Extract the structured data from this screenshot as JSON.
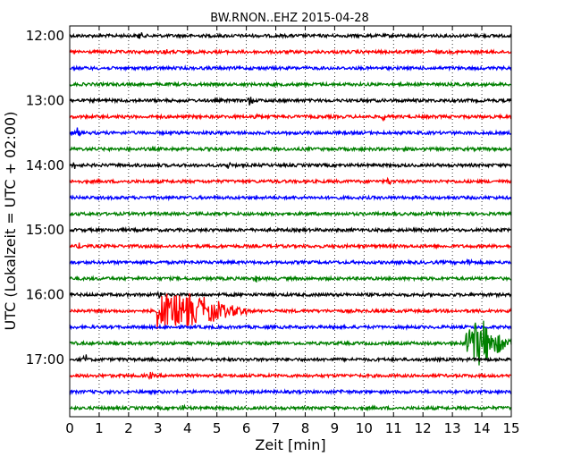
{
  "chart_data": {
    "type": "line",
    "title": "BW.RNON..EHZ 2015-04-28",
    "xlabel": "Zeit  [min]",
    "ylabel": "UTC (Lokalzeit = UTC + 02:00)",
    "xlim": [
      0,
      15
    ],
    "xticks": [
      "0",
      "1",
      "2",
      "3",
      "4",
      "5",
      "6",
      "7",
      "8",
      "9",
      "10",
      "11",
      "12",
      "13",
      "14",
      "15"
    ],
    "yticks": [
      "12:00",
      "13:00",
      "14:00",
      "15:00",
      "16:00",
      "17:00"
    ],
    "grid": "vertical-dotted",
    "trace_colors": [
      "#000000",
      "#ff0000",
      "#0000ff",
      "#008000"
    ],
    "series": [
      {
        "start": "12:00",
        "events": [
          {
            "t": 2.35,
            "amp": 0.4
          }
        ]
      },
      {
        "start": "12:15",
        "events": [
          {
            "t": 3.2,
            "amp": 0.3
          }
        ]
      },
      {
        "start": "12:30",
        "events": []
      },
      {
        "start": "12:45",
        "events": []
      },
      {
        "start": "13:00",
        "events": [
          {
            "t": 6.1,
            "amp": 0.5
          }
        ]
      },
      {
        "start": "13:15",
        "events": [
          {
            "t": 6.3,
            "amp": 0.35
          },
          {
            "t": 10.65,
            "amp": 0.4
          }
        ]
      },
      {
        "start": "13:30",
        "events": [
          {
            "t": 0.25,
            "amp": 0.6
          }
        ]
      },
      {
        "start": "13:45",
        "events": []
      },
      {
        "start": "14:00",
        "events": [
          {
            "t": 0.15,
            "amp": 0.35
          },
          {
            "t": 5.35,
            "amp": 0.3
          }
        ]
      },
      {
        "start": "14:15",
        "events": [
          {
            "t": 10.8,
            "amp": 0.3
          }
        ]
      },
      {
        "start": "14:30",
        "events": []
      },
      {
        "start": "14:45",
        "events": []
      },
      {
        "start": "15:00",
        "events": []
      },
      {
        "start": "15:15",
        "events": [
          {
            "t": 0.3,
            "amp": 0.25
          }
        ]
      },
      {
        "start": "15:30",
        "events": [
          {
            "t": 13.55,
            "amp": 0.35
          }
        ]
      },
      {
        "start": "15:45",
        "events": [
          {
            "t": 6.3,
            "amp": 0.3
          }
        ]
      },
      {
        "start": "16:00",
        "events": [
          {
            "t": 3.0,
            "amp": 0.3
          }
        ]
      },
      {
        "start": "16:15",
        "events": [
          {
            "t": 3.0,
            "amp": 2.2,
            "dur": 3.0,
            "tremor": 1.4
          }
        ]
      },
      {
        "start": "16:30",
        "events": [
          {
            "t": 9.0,
            "amp": 0.3
          }
        ]
      },
      {
        "start": "16:45",
        "events": [
          {
            "t": 13.5,
            "amp": 3.0,
            "dur": 1.5,
            "tremor": 1.4
          }
        ]
      },
      {
        "start": "17:00",
        "events": [
          {
            "t": 0.5,
            "amp": 0.5
          }
        ]
      },
      {
        "start": "17:15",
        "events": [
          {
            "t": 2.7,
            "amp": 0.3
          }
        ]
      },
      {
        "start": "17:30",
        "events": [
          {
            "t": 9.2,
            "amp": 0.2
          }
        ]
      },
      {
        "start": "17:45",
        "events": [
          {
            "t": 3.8,
            "amp": 0.2
          }
        ]
      }
    ]
  }
}
